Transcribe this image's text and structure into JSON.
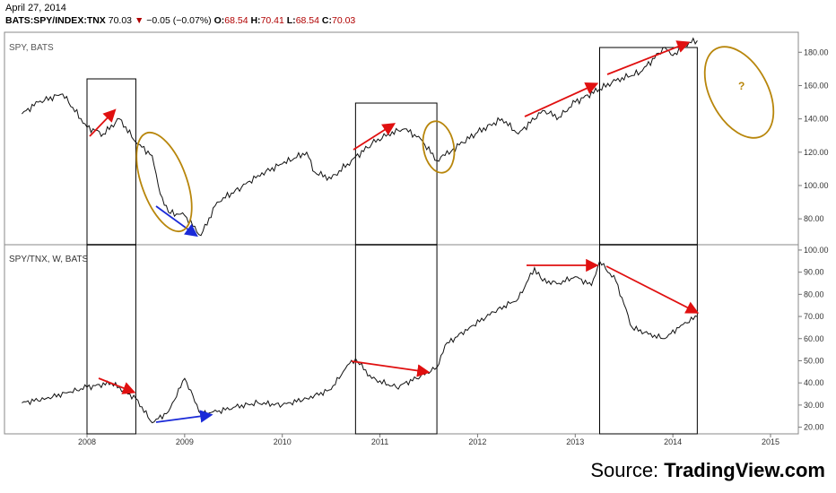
{
  "header": {
    "date": "April 27, 2014",
    "symbol": "BATS:SPY/INDEX:TNX",
    "last": "70.03",
    "change_arrow": "▼",
    "change": "−0.05 (−0.07%)",
    "o_label": "O:",
    "o_val": "68.54",
    "h_label": "H:",
    "h_val": "70.41",
    "l_label": "L:",
    "l_val": "68.54",
    "c_label": "C:",
    "c_val": "70.03"
  },
  "source": {
    "prefix": "Source: ",
    "name": "TradingView.com"
  },
  "colors": {
    "series": "#111111",
    "arrow_red": "#e01010",
    "arrow_blue": "#1a2ad8",
    "ellipse": "#b8860b",
    "axis": "#999999"
  },
  "chart_data": [
    {
      "type": "line",
      "pane_label": "SPY, BATS",
      "ylim": [
        65,
        192
      ],
      "yticks": [
        80,
        100,
        120,
        140,
        160,
        180
      ],
      "ytick_labels": [
        "80.00",
        "100.00",
        "120.00",
        "140.00",
        "160.00",
        "180.00"
      ],
      "series": [
        {
          "x": [
            "2007-05",
            "2007-07",
            "2007-10",
            "2008-01",
            "2008-03",
            "2008-05",
            "2008-07",
            "2008-09",
            "2008-10",
            "2008-11",
            "2009-01",
            "2009-03",
            "2009-05",
            "2009-08",
            "2009-10",
            "2010-01",
            "2010-04",
            "2010-05",
            "2010-07",
            "2010-09",
            "2010-12",
            "2011-02",
            "2011-04",
            "2011-06",
            "2011-08",
            "2011-09",
            "2011-10",
            "2012-01",
            "2012-04",
            "2012-06",
            "2012-09",
            "2012-11",
            "2013-01",
            "2013-04",
            "2013-06",
            "2013-09",
            "2013-12",
            "2014-01",
            "2014-03",
            "2014-04"
          ],
          "values": [
            143,
            150,
            155,
            135,
            131,
            140,
            126,
            118,
            95,
            84,
            82,
            70,
            90,
            99,
            106,
            113,
            120,
            108,
            104,
            113,
            125,
            131,
            134,
            128,
            115,
            118,
            122,
            132,
            140,
            131,
            145,
            141,
            150,
            158,
            163,
            168,
            183,
            178,
            186,
            187
          ]
        }
      ],
      "annotations": {
        "boxes": [
          [
            "2008-01",
            "2008-07"
          ],
          [
            "2010-10",
            "2011-08"
          ],
          [
            "2013-04",
            "2014-04"
          ]
        ],
        "question": "?"
      }
    },
    {
      "type": "line",
      "pane_label": "SPY/TNX, W, BATS",
      "ylim": [
        17,
        102
      ],
      "yticks": [
        20,
        30,
        40,
        50,
        60,
        70,
        80,
        90,
        100
      ],
      "ytick_labels": [
        "20.00",
        "30.00",
        "40.00",
        "50.00",
        "60.00",
        "70.00",
        "80.00",
        "90.00",
        "100.00"
      ],
      "xtick_labels": [
        "2008",
        "2009",
        "2010",
        "2011",
        "2012",
        "2013",
        "2014",
        "2015"
      ],
      "series": [
        {
          "x": [
            "2007-05",
            "2007-08",
            "2007-11",
            "2008-01",
            "2008-04",
            "2008-07",
            "2008-09",
            "2008-11",
            "2009-01",
            "2009-03",
            "2009-05",
            "2009-07",
            "2009-10",
            "2010-01",
            "2010-04",
            "2010-07",
            "2010-09",
            "2010-10",
            "2010-12",
            "2011-03",
            "2011-06",
            "2011-08",
            "2011-09",
            "2011-12",
            "2012-03",
            "2012-06",
            "2012-08",
            "2012-09",
            "2012-11",
            "2013-01",
            "2013-03",
            "2013-04",
            "2013-06",
            "2013-08",
            "2013-10",
            "2013-12",
            "2014-02",
            "2014-04"
          ],
          "values": [
            31,
            33,
            36,
            38,
            40,
            33,
            22,
            27,
            42,
            26,
            27,
            29,
            31,
            30,
            33,
            37,
            48,
            51,
            42,
            38,
            43,
            47,
            57,
            65,
            72,
            78,
            92,
            86,
            85,
            88,
            84,
            95,
            86,
            65,
            62,
            60,
            66,
            70
          ]
        }
      ]
    }
  ]
}
